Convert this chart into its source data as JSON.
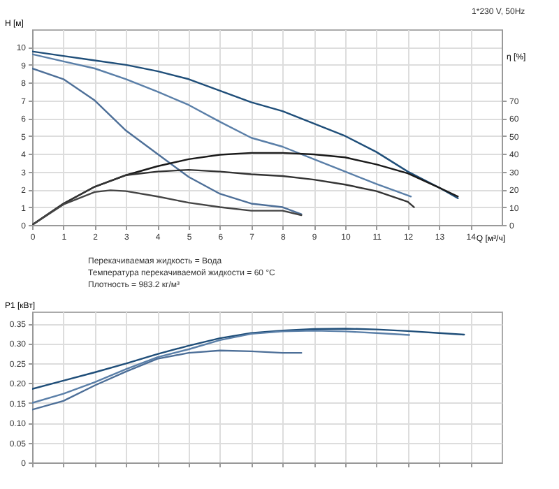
{
  "chart_data": [
    {
      "type": "line",
      "title": "1*230 V, 50Hz",
      "xlabel": "Q [м³/ч]",
      "ylabel": "H [м]",
      "y2label": "η [%]",
      "xlim": [
        0,
        15
      ],
      "xticks": [
        0,
        1,
        2,
        3,
        4,
        5,
        6,
        7,
        8,
        9,
        10,
        11,
        12,
        13,
        14
      ],
      "ylim": [
        0,
        11
      ],
      "yticks": [
        0,
        1,
        2,
        3,
        4,
        5,
        6,
        7,
        8,
        9,
        10
      ],
      "y2lim": [
        0,
        110
      ],
      "y2ticks": [
        0,
        10,
        20,
        30,
        40,
        50,
        60,
        70
      ],
      "grid": true,
      "annotations": [
        "Перекачиваемая жидкость = Вода",
        "Температура перекачиваемой жидкости = 60 °C",
        "Плотность = 983.2 кг/м³"
      ],
      "series": [
        {
          "color": "#1f4e79",
          "x": [
            0,
            1,
            2,
            3,
            4,
            5,
            6,
            7,
            8,
            9,
            10,
            11,
            12,
            13,
            13.6
          ],
          "values": [
            9.76,
            9.5,
            9.25,
            9.0,
            8.65,
            8.2,
            7.55,
            6.9,
            6.4,
            5.7,
            5.0,
            4.1,
            3.0,
            2.1,
            1.5
          ]
        },
        {
          "color": "#5a7fa8",
          "x": [
            0,
            1,
            2,
            3,
            4,
            5,
            6,
            7,
            8,
            9,
            10,
            11,
            12.1
          ],
          "values": [
            9.6,
            9.2,
            8.8,
            8.2,
            7.5,
            6.75,
            5.8,
            4.9,
            4.4,
            3.7,
            3.0,
            2.3,
            1.6
          ]
        },
        {
          "color": "#4d6f98",
          "x": [
            0,
            1,
            2,
            3,
            4,
            5,
            6,
            7,
            8,
            8.6
          ],
          "values": [
            8.8,
            8.2,
            7.0,
            5.3,
            4.0,
            2.7,
            1.75,
            1.2,
            1.0,
            0.6
          ]
        },
        {
          "color": "#1a1a1a",
          "axis": "y2",
          "x": [
            0,
            1,
            2,
            3,
            4,
            5,
            6,
            7,
            8,
            9,
            10,
            11,
            12,
            13,
            13.6
          ],
          "values": [
            0,
            12,
            21.5,
            28,
            33,
            37,
            39.5,
            40.5,
            40.5,
            39.7,
            38,
            34,
            29,
            21,
            16
          ]
        },
        {
          "color": "#333333",
          "axis": "y2",
          "x": [
            0,
            1,
            2,
            3,
            4,
            5,
            6,
            7,
            8,
            9,
            10,
            11,
            12,
            12.2
          ],
          "values": [
            0,
            12,
            21.5,
            28,
            30,
            31,
            30,
            28.5,
            27.5,
            25.5,
            22.7,
            19,
            13,
            10
          ]
        },
        {
          "color": "#444444",
          "axis": "y2",
          "x": [
            0,
            1,
            2,
            2.5,
            3,
            4,
            5,
            6,
            7,
            8,
            8.6
          ],
          "values": [
            0,
            11.5,
            18.5,
            19.5,
            19,
            16,
            12.5,
            10,
            8,
            8,
            5.5
          ]
        }
      ]
    },
    {
      "type": "line",
      "ylabel": "P1 [кВт]",
      "xlim": [
        0,
        15
      ],
      "xticks": [
        0,
        1,
        2,
        3,
        4,
        5,
        6,
        7,
        8,
        9,
        10,
        11,
        12,
        13,
        14
      ],
      "ylim": [
        0,
        0.38
      ],
      "yticks": [
        0,
        0.05,
        {
          "value": 0.1,
          "label": "0.10"
        },
        0.15,
        {
          "value": 0.2,
          "label": "0.20"
        },
        0.25,
        {
          "value": 0.3,
          "label": "0.30"
        },
        0.35
      ],
      "grid": true,
      "tick_labels": "y",
      "series": [
        {
          "color": "#1f4e79",
          "x": [
            0,
            1,
            2,
            3,
            4,
            5,
            6,
            7,
            8,
            9,
            10,
            11,
            12,
            13,
            13.8
          ],
          "values": [
            0.185,
            0.206,
            0.227,
            0.249,
            0.273,
            0.294,
            0.313,
            0.326,
            0.332,
            0.336,
            0.337,
            0.335,
            0.331,
            0.326,
            0.322
          ]
        },
        {
          "color": "#5a7fa8",
          "x": [
            0,
            1,
            2,
            3,
            4,
            5,
            6,
            7,
            8,
            9,
            10,
            11,
            12.05
          ],
          "values": [
            0.15,
            0.173,
            0.202,
            0.235,
            0.265,
            0.285,
            0.308,
            0.324,
            0.33,
            0.332,
            0.33,
            0.326,
            0.321
          ]
        },
        {
          "color": "#4d6f98",
          "x": [
            0,
            1,
            2,
            3,
            4,
            5,
            6,
            7,
            8,
            8.6
          ],
          "values": [
            0.133,
            0.155,
            0.194,
            0.229,
            0.261,
            0.276,
            0.282,
            0.28,
            0.276,
            0.276
          ]
        }
      ]
    }
  ]
}
